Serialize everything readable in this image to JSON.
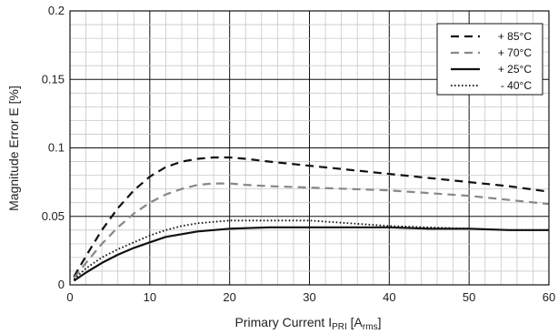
{
  "chart_data": {
    "type": "line",
    "xlabel": "Primary Current I",
    "xlabel_sub": "PRI",
    "xlabel_suffix_pre": " [A",
    "xlabel_suffix_sub": "rms",
    "xlabel_suffix_post": "]",
    "ylabel": "Magnitude Error E [%]",
    "xlim": [
      0,
      60
    ],
    "ylim": [
      0,
      0.2
    ],
    "x_ticks": [
      "0",
      "10",
      "20",
      "30",
      "40",
      "50",
      "60"
    ],
    "y_ticks": [
      "0",
      "0.05",
      "0.1",
      "0.15",
      "0.2"
    ],
    "grid": true,
    "legend_position": "top-right",
    "series": [
      {
        "name": "+ 85°C",
        "style": "dashed",
        "color": "#111111",
        "x": [
          0.5,
          2,
          4,
          6,
          8,
          10,
          12,
          14,
          16,
          18,
          20,
          22,
          25,
          30,
          35,
          40,
          45,
          50,
          55,
          60
        ],
        "y": [
          0.006,
          0.021,
          0.04,
          0.056,
          0.069,
          0.079,
          0.086,
          0.09,
          0.092,
          0.093,
          0.093,
          0.092,
          0.09,
          0.087,
          0.084,
          0.081,
          0.078,
          0.075,
          0.072,
          0.068
        ]
      },
      {
        "name": "+ 70°C",
        "style": "dashed",
        "color": "#888888",
        "x": [
          0.5,
          2,
          4,
          6,
          8,
          10,
          12,
          14,
          16,
          18,
          20,
          22,
          25,
          30,
          35,
          40,
          45,
          50,
          55,
          60
        ],
        "y": [
          0.005,
          0.016,
          0.03,
          0.042,
          0.052,
          0.06,
          0.066,
          0.07,
          0.073,
          0.074,
          0.074,
          0.073,
          0.072,
          0.071,
          0.07,
          0.069,
          0.067,
          0.065,
          0.062,
          0.059
        ]
      },
      {
        "name": "+ 25°C",
        "style": "solid",
        "color": "#111111",
        "x": [
          0.5,
          2,
          4,
          6,
          8,
          10,
          12,
          14,
          16,
          18,
          20,
          25,
          30,
          35,
          40,
          45,
          50,
          55,
          60
        ],
        "y": [
          0.003,
          0.009,
          0.016,
          0.022,
          0.027,
          0.031,
          0.035,
          0.037,
          0.039,
          0.04,
          0.041,
          0.042,
          0.042,
          0.042,
          0.042,
          0.041,
          0.041,
          0.04,
          0.04
        ]
      },
      {
        "name": "- 40°C",
        "style": "dotted",
        "color": "#111111",
        "x": [
          0.5,
          2,
          4,
          6,
          8,
          10,
          12,
          14,
          16,
          18,
          20,
          25,
          30,
          35,
          40,
          45,
          50,
          55,
          60
        ],
        "y": [
          0.004,
          0.012,
          0.02,
          0.026,
          0.031,
          0.036,
          0.04,
          0.043,
          0.045,
          0.046,
          0.047,
          0.047,
          0.047,
          0.045,
          0.043,
          0.042,
          0.041,
          0.04,
          0.04
        ]
      }
    ]
  }
}
